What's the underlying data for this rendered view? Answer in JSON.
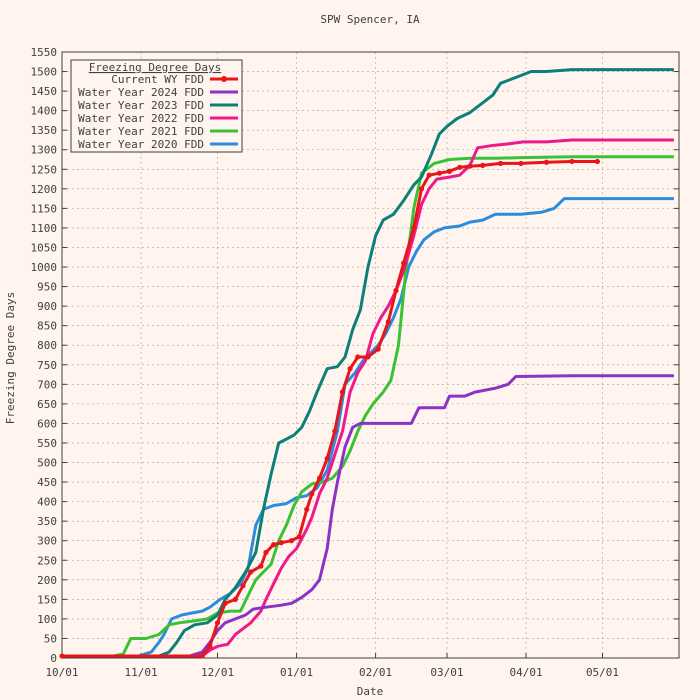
{
  "chart_data": {
    "type": "line",
    "title": "SPW Spencer, IA",
    "xlabel": "Date",
    "ylabel": "Freezing Degree Days",
    "x_axis": {
      "min": "10/01",
      "max": "05/31",
      "ticks": [
        {
          "label": "10/01",
          "day": 0
        },
        {
          "label": "11/01",
          "day": 31
        },
        {
          "label": "12/01",
          "day": 61
        },
        {
          "label": "01/01",
          "day": 92
        },
        {
          "label": "02/01",
          "day": 123
        },
        {
          "label": "03/01",
          "day": 151
        },
        {
          "label": "04/01",
          "day": 182
        },
        {
          "label": "05/01",
          "day": 212
        }
      ]
    },
    "ylim": [
      0,
      1550
    ],
    "y_ticks": [
      0,
      50,
      100,
      150,
      200,
      250,
      300,
      350,
      400,
      450,
      500,
      550,
      600,
      650,
      700,
      750,
      800,
      850,
      900,
      950,
      1000,
      1050,
      1100,
      1150,
      1200,
      1250,
      1300,
      1350,
      1400,
      1450,
      1500,
      1550
    ],
    "grid": true,
    "legend": {
      "title": "Freezing Degree Days",
      "placement": "top-left"
    },
    "series": [
      {
        "name": "Current WY FDD",
        "color": "#e8151b",
        "marker": true,
        "points": [
          [
            0,
            5
          ],
          [
            55,
            5
          ],
          [
            58,
            30
          ],
          [
            61,
            90
          ],
          [
            64,
            140
          ],
          [
            68,
            150
          ],
          [
            71,
            185
          ],
          [
            74,
            220
          ],
          [
            78,
            235
          ],
          [
            80,
            270
          ],
          [
            83,
            290
          ],
          [
            86,
            295
          ],
          [
            90,
            300
          ],
          [
            93,
            310
          ],
          [
            96,
            380
          ],
          [
            98,
            420
          ],
          [
            101,
            460
          ],
          [
            104,
            510
          ],
          [
            107,
            580
          ],
          [
            110,
            680
          ],
          [
            113,
            740
          ],
          [
            116,
            770
          ],
          [
            120,
            770
          ],
          [
            124,
            790
          ],
          [
            128,
            860
          ],
          [
            131,
            940
          ],
          [
            134,
            1010
          ],
          [
            138,
            1100
          ],
          [
            141,
            1200
          ],
          [
            144,
            1235
          ],
          [
            148,
            1240
          ],
          [
            152,
            1245
          ],
          [
            156,
            1255
          ],
          [
            160,
            1258
          ],
          [
            165,
            1260
          ],
          [
            172,
            1265
          ],
          [
            180,
            1265
          ],
          [
            190,
            1268
          ],
          [
            200,
            1270
          ],
          [
            210,
            1270
          ]
        ]
      },
      {
        "name": "Water Year 2024 FDD",
        "color": "#8b32c8",
        "marker": false,
        "points": [
          [
            0,
            5
          ],
          [
            50,
            5
          ],
          [
            55,
            15
          ],
          [
            58,
            40
          ],
          [
            61,
            70
          ],
          [
            64,
            90
          ],
          [
            68,
            100
          ],
          [
            72,
            110
          ],
          [
            75,
            125
          ],
          [
            80,
            130
          ],
          [
            86,
            135
          ],
          [
            90,
            140
          ],
          [
            94,
            155
          ],
          [
            98,
            175
          ],
          [
            101,
            200
          ],
          [
            104,
            280
          ],
          [
            106,
            380
          ],
          [
            108,
            450
          ],
          [
            111,
            540
          ],
          [
            114,
            590
          ],
          [
            117,
            600
          ],
          [
            125,
            600
          ],
          [
            137,
            600
          ],
          [
            140,
            640
          ],
          [
            150,
            640
          ],
          [
            152,
            670
          ],
          [
            158,
            670
          ],
          [
            162,
            680
          ],
          [
            170,
            690
          ],
          [
            175,
            700
          ],
          [
            178,
            720
          ],
          [
            200,
            722
          ],
          [
            240,
            722
          ]
        ]
      },
      {
        "name": "Water Year 2023 FDD",
        "color": "#0b7f78",
        "marker": false,
        "points": [
          [
            0,
            5
          ],
          [
            17,
            5
          ],
          [
            25,
            5
          ],
          [
            38,
            5
          ],
          [
            42,
            15
          ],
          [
            45,
            40
          ],
          [
            48,
            70
          ],
          [
            52,
            85
          ],
          [
            57,
            90
          ],
          [
            61,
            110
          ],
          [
            64,
            150
          ],
          [
            68,
            180
          ],
          [
            72,
            220
          ],
          [
            76,
            270
          ],
          [
            79,
            380
          ],
          [
            82,
            470
          ],
          [
            85,
            550
          ],
          [
            88,
            560
          ],
          [
            91,
            570
          ],
          [
            94,
            590
          ],
          [
            97,
            630
          ],
          [
            100,
            680
          ],
          [
            104,
            740
          ],
          [
            108,
            745
          ],
          [
            111,
            770
          ],
          [
            114,
            840
          ],
          [
            117,
            890
          ],
          [
            120,
            1000
          ],
          [
            123,
            1080
          ],
          [
            126,
            1120
          ],
          [
            130,
            1135
          ],
          [
            134,
            1170
          ],
          [
            138,
            1210
          ],
          [
            141,
            1230
          ],
          [
            145,
            1290
          ],
          [
            148,
            1340
          ],
          [
            151,
            1360
          ],
          [
            155,
            1380
          ],
          [
            160,
            1395
          ],
          [
            165,
            1420
          ],
          [
            169,
            1440
          ],
          [
            172,
            1470
          ],
          [
            176,
            1480
          ],
          [
            180,
            1490
          ],
          [
            184,
            1500
          ],
          [
            190,
            1500
          ],
          [
            200,
            1505
          ],
          [
            220,
            1505
          ],
          [
            240,
            1505
          ]
        ]
      },
      {
        "name": "Water Year 2022 FDD",
        "color": "#f0198c",
        "marker": false,
        "points": [
          [
            0,
            5
          ],
          [
            55,
            5
          ],
          [
            58,
            20
          ],
          [
            61,
            30
          ],
          [
            65,
            35
          ],
          [
            68,
            60
          ],
          [
            71,
            75
          ],
          [
            74,
            90
          ],
          [
            78,
            120
          ],
          [
            80,
            150
          ],
          [
            83,
            190
          ],
          [
            86,
            230
          ],
          [
            89,
            260
          ],
          [
            92,
            280
          ],
          [
            96,
            330
          ],
          [
            98,
            360
          ],
          [
            101,
            420
          ],
          [
            104,
            460
          ],
          [
            107,
            520
          ],
          [
            110,
            580
          ],
          [
            113,
            680
          ],
          [
            116,
            730
          ],
          [
            119,
            760
          ],
          [
            122,
            830
          ],
          [
            125,
            870
          ],
          [
            128,
            900
          ],
          [
            131,
            940
          ],
          [
            134,
            990
          ],
          [
            138,
            1080
          ],
          [
            141,
            1160
          ],
          [
            144,
            1200
          ],
          [
            147,
            1225
          ],
          [
            152,
            1230
          ],
          [
            156,
            1235
          ],
          [
            160,
            1260
          ],
          [
            163,
            1305
          ],
          [
            168,
            1310
          ],
          [
            175,
            1315
          ],
          [
            181,
            1320
          ],
          [
            190,
            1320
          ],
          [
            200,
            1325
          ],
          [
            215,
            1325
          ],
          [
            240,
            1325
          ]
        ]
      },
      {
        "name": "Water Year 2021 FDD",
        "color": "#39c233",
        "marker": false,
        "points": [
          [
            0,
            5
          ],
          [
            20,
            5
          ],
          [
            24,
            10
          ],
          [
            27,
            50
          ],
          [
            33,
            50
          ],
          [
            38,
            60
          ],
          [
            42,
            85
          ],
          [
            46,
            90
          ],
          [
            52,
            95
          ],
          [
            57,
            100
          ],
          [
            61,
            115
          ],
          [
            66,
            120
          ],
          [
            70,
            120
          ],
          [
            73,
            160
          ],
          [
            76,
            200
          ],
          [
            79,
            220
          ],
          [
            82,
            240
          ],
          [
            85,
            300
          ],
          [
            88,
            340
          ],
          [
            91,
            390
          ],
          [
            94,
            425
          ],
          [
            98,
            445
          ],
          [
            102,
            450
          ],
          [
            106,
            460
          ],
          [
            110,
            490
          ],
          [
            113,
            530
          ],
          [
            116,
            580
          ],
          [
            119,
            620
          ],
          [
            122,
            650
          ],
          [
            126,
            680
          ],
          [
            129,
            710
          ],
          [
            132,
            800
          ],
          [
            135,
            1000
          ],
          [
            138,
            1150
          ],
          [
            141,
            1240
          ],
          [
            146,
            1265
          ],
          [
            152,
            1275
          ],
          [
            160,
            1278
          ],
          [
            170,
            1278
          ],
          [
            180,
            1280
          ],
          [
            200,
            1282
          ],
          [
            220,
            1282
          ],
          [
            240,
            1282
          ]
        ]
      },
      {
        "name": "Water Year 2020 FDD",
        "color": "#2b8cde",
        "marker": false,
        "points": [
          [
            0,
            5
          ],
          [
            30,
            5
          ],
          [
            35,
            15
          ],
          [
            38,
            40
          ],
          [
            40,
            60
          ],
          [
            43,
            100
          ],
          [
            47,
            110
          ],
          [
            51,
            115
          ],
          [
            55,
            120
          ],
          [
            58,
            130
          ],
          [
            62,
            150
          ],
          [
            66,
            165
          ],
          [
            70,
            190
          ],
          [
            73,
            230
          ],
          [
            76,
            340
          ],
          [
            79,
            380
          ],
          [
            83,
            390
          ],
          [
            88,
            395
          ],
          [
            92,
            410
          ],
          [
            96,
            415
          ],
          [
            100,
            435
          ],
          [
            104,
            480
          ],
          [
            108,
            580
          ],
          [
            111,
            700
          ],
          [
            115,
            730
          ],
          [
            118,
            760
          ],
          [
            121,
            780
          ],
          [
            124,
            800
          ],
          [
            127,
            830
          ],
          [
            130,
            870
          ],
          [
            133,
            920
          ],
          [
            136,
            1000
          ],
          [
            139,
            1040
          ],
          [
            142,
            1070
          ],
          [
            146,
            1090
          ],
          [
            150,
            1100
          ],
          [
            156,
            1105
          ],
          [
            160,
            1115
          ],
          [
            165,
            1120
          ],
          [
            170,
            1135
          ],
          [
            180,
            1135
          ],
          [
            188,
            1140
          ],
          [
            193,
            1150
          ],
          [
            197,
            1175
          ],
          [
            210,
            1175
          ],
          [
            240,
            1175
          ]
        ]
      }
    ]
  }
}
